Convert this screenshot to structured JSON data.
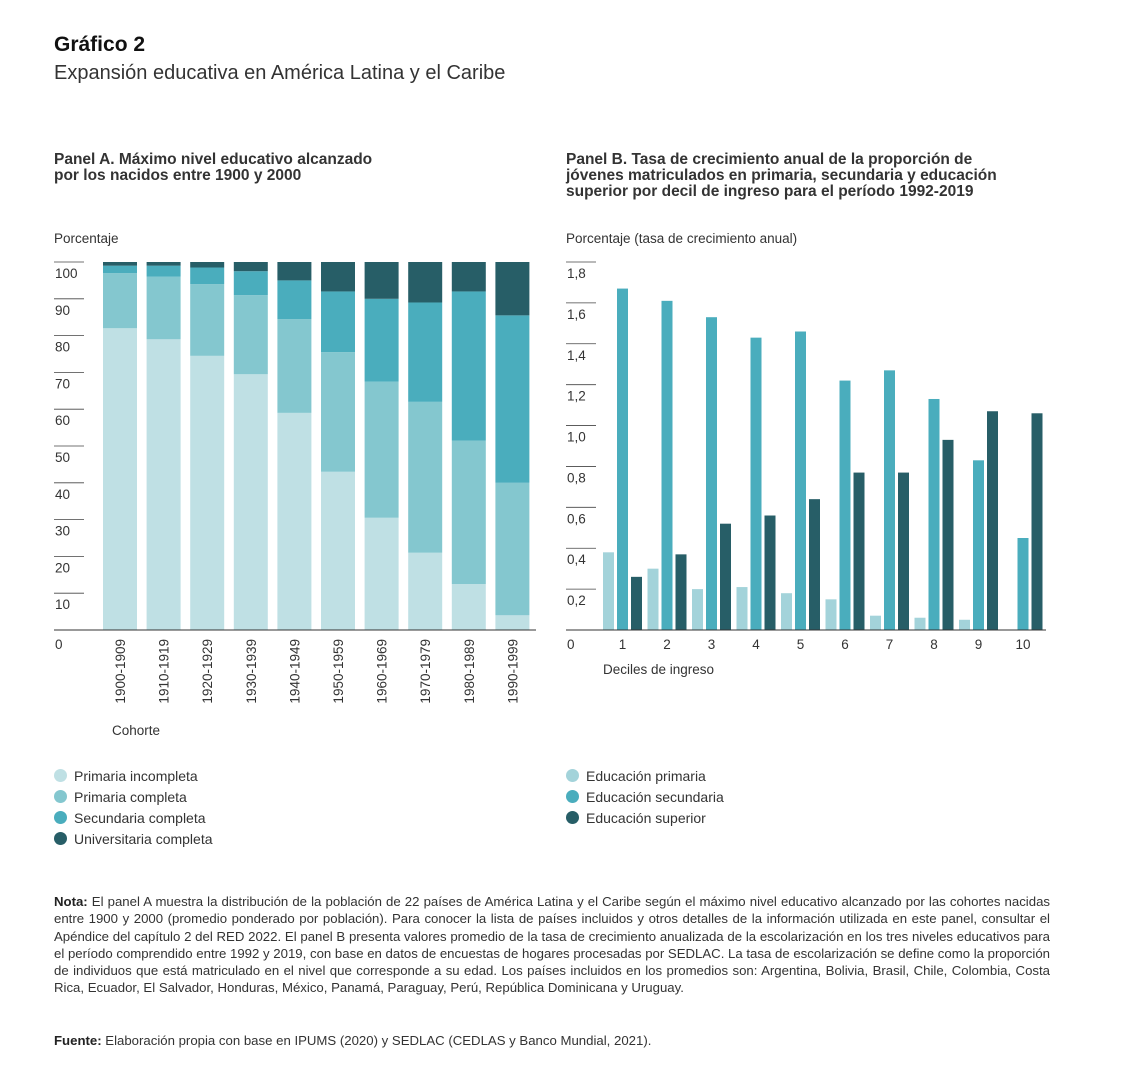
{
  "figure": {
    "title": "Gráfico 2",
    "subtitle": "Expansión educativa en América Latina y el Caribe"
  },
  "chart_data": [
    {
      "type": "bar",
      "stacked": true,
      "title_line1": "Panel A. Máximo nivel educativo alcanzado",
      "title_line2": "por los nacidos entre 1900 y 2000",
      "ylabel": "Porcentaje",
      "xlabel": "Cohorte",
      "ylim": [
        0,
        100
      ],
      "yticks": [
        "0",
        "10",
        "20",
        "30",
        "40",
        "50",
        "60",
        "70",
        "80",
        "90",
        "100"
      ],
      "categories": [
        "1900-1909",
        "1910-1919",
        "1920-1929",
        "1930-1939",
        "1940-1949",
        "1950-1959",
        "1960-1969",
        "1970-1979",
        "1980-1989",
        "1990-1999"
      ],
      "series": [
        {
          "name": "Primaria incompleta",
          "color": "#bfe0e4",
          "values": [
            82,
            79,
            74.5,
            69.5,
            59,
            43,
            30.5,
            21,
            12.5,
            4
          ]
        },
        {
          "name": "Primaria completa",
          "color": "#84c7cf",
          "values": [
            15,
            17,
            19.5,
            21.5,
            25.5,
            32.5,
            37,
            41,
            39,
            36
          ]
        },
        {
          "name": "Secundaria completa",
          "color": "#4aadbd",
          "values": [
            2,
            3,
            4.5,
            6.5,
            10.5,
            16.5,
            22.5,
            27,
            40.5,
            45.5
          ]
        },
        {
          "name": "Universitaria completa",
          "color": "#275e67",
          "values": [
            1,
            1,
            1.5,
            2.5,
            5,
            8,
            10,
            11,
            8,
            14.5
          ]
        }
      ]
    },
    {
      "type": "bar",
      "title_line1": "Panel B. Tasa de crecimiento anual de la proporción de",
      "title_line2": "jóvenes matriculados en primaria, secundaria y educación",
      "title_line3": "superior por decil de ingreso para el período 1992-2019",
      "ylabel": "Porcentaje (tasa de crecimiento anual)",
      "xlabel": "Deciles de ingreso",
      "ylim": [
        0,
        1.8
      ],
      "yticks": [
        "0",
        "0,2",
        "0,4",
        "0,6",
        "0,8",
        "1,0",
        "1,2",
        "1,4",
        "1,6",
        "1,8"
      ],
      "categories": [
        "1",
        "2",
        "3",
        "4",
        "5",
        "6",
        "7",
        "8",
        "9",
        "10"
      ],
      "series": [
        {
          "name": "Educación primaria",
          "color": "#a3d3da",
          "values": [
            0.38,
            0.3,
            0.2,
            0.21,
            0.18,
            0.15,
            0.07,
            0.06,
            0.05,
            0
          ]
        },
        {
          "name": "Educación secundaria",
          "color": "#4aadbd",
          "values": [
            1.67,
            1.61,
            1.53,
            1.43,
            1.46,
            1.22,
            1.27,
            1.13,
            0.83,
            0.45
          ]
        },
        {
          "name": "Educación superior",
          "color": "#275e67",
          "values": [
            0.26,
            0.37,
            0.52,
            0.56,
            0.64,
            0.77,
            0.77,
            0.93,
            1.07,
            1.06
          ]
        }
      ]
    }
  ],
  "footer": {
    "note_label": "Nota:",
    "note_text": " El panel A muestra la distribución de la población de 22 países de América Latina y el Caribe según el máximo nivel educativo alcanzado por las cohortes nacidas entre 1900 y 2000 (promedio ponderado por población). Para conocer la lista de países incluidos y otros detalles de la información utilizada en este panel, consultar el Apéndice del capítulo 2 del RED 2022. El panel B presenta valores promedio de la tasa de crecimiento anualizada de la escolarización en los tres niveles educativos para el período comprendido entre 1992 y 2019, con base en datos de encuestas de hogares procesadas por SEDLAC. La tasa de escolarización se define como la proporción de individuos que está matriculado en el nivel que corresponde a su edad. Los países incluidos en los promedios son: Argentina, Bolivia, Brasil, Chile, Colombia, Costa Rica, Ecuador, El Salvador, Honduras, México, Panamá, Paraguay, Perú, República Dominicana y Uruguay.",
    "source_label": "Fuente:",
    "source_text": " Elaboración propia con base en IPUMS (2020) y SEDLAC (CEDLAS y Banco Mundial, 2021)."
  }
}
